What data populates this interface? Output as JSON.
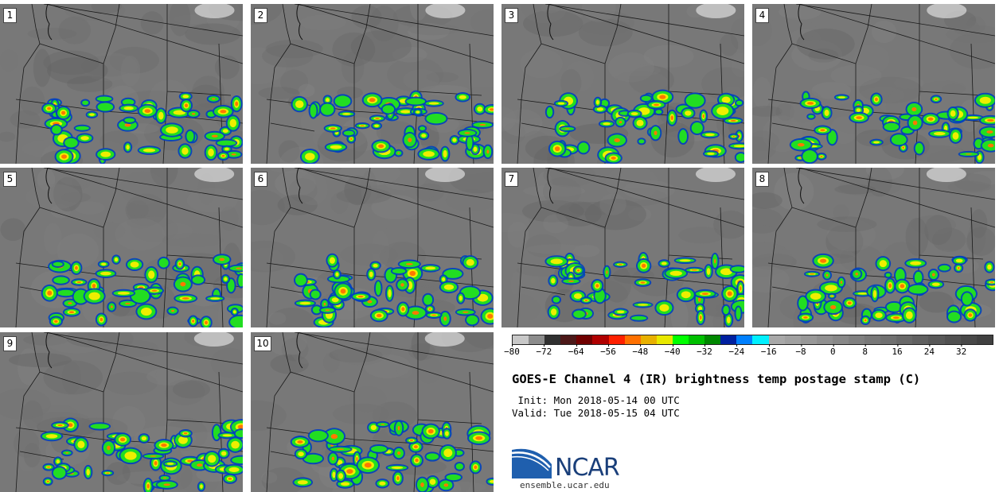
{
  "panels": [
    {
      "label": "1"
    },
    {
      "label": "2"
    },
    {
      "label": "3"
    },
    {
      "label": "4"
    },
    {
      "label": "5"
    },
    {
      "label": "6"
    },
    {
      "label": "7"
    },
    {
      "label": "8"
    },
    {
      "label": "9"
    },
    {
      "label": "10"
    }
  ],
  "colorbar": {
    "colors": [
      "#c8c8c8",
      "#8c8c8c",
      "#303030",
      "#4c1818",
      "#700000",
      "#b00000",
      "#ff2000",
      "#ff7000",
      "#e8b000",
      "#e8e800",
      "#00ff00",
      "#00c000",
      "#008800",
      "#0020a0",
      "#0080ff",
      "#00f0ff",
      "#a8a8a8",
      "#a0a0a0",
      "#989898",
      "#909090",
      "#888888",
      "#808080",
      "#787878",
      "#707070",
      "#686868",
      "#606060",
      "#585858",
      "#505050",
      "#484848",
      "#404040"
    ],
    "ticks": [
      "−80",
      "−72",
      "−64",
      "−56",
      "−48",
      "−40",
      "−32",
      "−24",
      "−16",
      "−8",
      "0",
      "8",
      "16",
      "24",
      "32"
    ]
  },
  "title": "GOES-E Channel 4 (IR) brightness temp postage stamp (C)",
  "init": " Init: Mon 2018-05-14 00 UTC",
  "valid": "Valid: Tue 2018-05-15 04 UTC",
  "logo": {
    "name": "NCAR",
    "url": "ensemble.ucar.edu"
  }
}
